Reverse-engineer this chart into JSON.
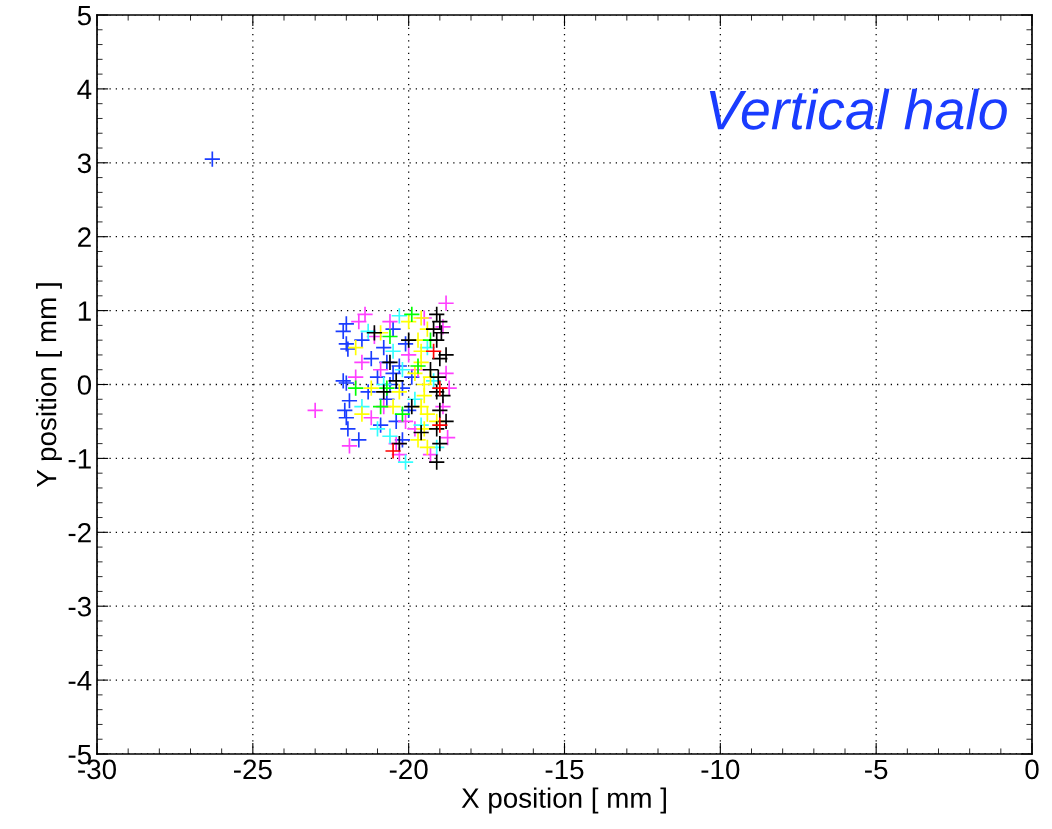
{
  "chart_data": {
    "type": "scatter",
    "xlabel": "X position [ mm ]",
    "ylabel": "Y position [ mm ]",
    "annotations": [
      "Vertical halo"
    ],
    "xlim": [
      -30,
      0
    ],
    "xticks": [
      -30,
      -25,
      -20,
      -15,
      -10,
      -5,
      0
    ],
    "ylim": [
      -5,
      5
    ],
    "yticks": [
      -5,
      -4,
      -3,
      -2,
      -1,
      0,
      1,
      2,
      3,
      4,
      5
    ],
    "grid": true,
    "marker": "cross",
    "series": [
      {
        "color": "#1a3cff",
        "x": [
          -26.3,
          -22.0,
          -22.1,
          -22.0,
          -21.95,
          -22.1,
          -22.0,
          -22.05,
          -22.0,
          -21.95,
          -21.9,
          -21.5,
          -21.2,
          -21.0,
          -20.8,
          -20.7,
          -20.5,
          -20.4,
          -20.6,
          -20.3,
          -20.2,
          -20.1,
          -20.0,
          -20.9,
          -21.3,
          -20.5,
          -19.9,
          -20.7,
          -21.6,
          -20.2
        ],
        "values": [
          3.05,
          0.82,
          0.72,
          0.55,
          0.48,
          0.05,
          0.02,
          -0.35,
          -0.45,
          -0.6,
          -0.22,
          0.6,
          0.35,
          0.1,
          0.5,
          -0.2,
          0.75,
          -0.5,
          0.0,
          0.25,
          -0.05,
          0.55,
          -0.35,
          -0.55,
          -0.1,
          0.15,
          0.1,
          0.3,
          -0.75,
          -0.75
        ]
      },
      {
        "color": "#ff40ff",
        "x": [
          -23.0,
          -21.4,
          -21.6,
          -21.9,
          -21.5,
          -21.1,
          -20.8,
          -20.6,
          -20.4,
          -20.0,
          -19.8,
          -19.5,
          -19.3,
          -18.8,
          -18.9,
          -18.9,
          -18.8,
          -18.75,
          -20.3,
          -21.2,
          -20.9,
          -21.7,
          -19.7,
          -18.7,
          -20.1
        ],
        "values": [
          -0.35,
          0.95,
          0.85,
          -0.83,
          0.3,
          0.65,
          -0.3,
          0.85,
          -0.8,
          0.4,
          -0.6,
          0.9,
          -0.95,
          1.1,
          0.78,
          -0.3,
          0.15,
          -0.72,
          -0.95,
          -0.45,
          0.2,
          0.1,
          0.2,
          -0.05,
          -0.5
        ]
      },
      {
        "color": "#33ffff",
        "x": [
          -21.3,
          -20.3,
          -21.5,
          -20.8,
          -20.1,
          -19.8,
          -19.4,
          -20.5,
          -19.1,
          -21.0,
          -19.6,
          -20.2,
          -19.2,
          -20.6
        ],
        "values": [
          0.72,
          0.93,
          -0.3,
          0.0,
          -1.05,
          -0.2,
          0.5,
          0.45,
          -0.85,
          -0.6,
          -0.55,
          0.2,
          0.05,
          -0.7
        ]
      },
      {
        "color": "#ffff00",
        "x": [
          -21.7,
          -21.5,
          -21.2,
          -20.9,
          -20.5,
          -20.0,
          -19.7,
          -19.6,
          -19.5,
          -19.6,
          -19.5,
          -19.4,
          -19.7,
          -19.3,
          -19.4,
          -19.6,
          -19.5,
          -19.8,
          -19.4,
          -20.3,
          -19.1,
          -19.6
        ],
        "values": [
          0.5,
          -0.4,
          -0.05,
          0.7,
          -0.3,
          0.85,
          0.6,
          0.3,
          0.0,
          -0.3,
          -0.6,
          0.75,
          -0.75,
          0.1,
          -0.4,
          0.45,
          -0.15,
          0.15,
          -0.85,
          -0.1,
          -0.5,
          0.9
        ]
      },
      {
        "color": "#00ff00",
        "x": [
          -19.9,
          -20.6,
          -20.7,
          -20.2,
          -19.7,
          -21.7,
          -20.9,
          -19.3
        ],
        "values": [
          0.95,
          0.65,
          -0.05,
          -0.4,
          0.25,
          -0.05,
          -0.3,
          0.6
        ]
      },
      {
        "color": "#000000",
        "x": [
          -21.1,
          -20.6,
          -20.3,
          -20.0,
          -20.4,
          -19.9,
          -19.1,
          -19.0,
          -19.1,
          -19.0,
          -19.05,
          -19.1,
          -19.0,
          -19.1,
          -19.0,
          -19.1,
          -18.8,
          -18.8,
          -19.3,
          -19.6,
          -20.8,
          -19.2,
          -18.9,
          -18.95
        ],
        "values": [
          0.7,
          0.3,
          -0.8,
          0.6,
          0.05,
          -0.3,
          0.95,
          0.85,
          0.6,
          0.35,
          0.1,
          -0.1,
          -0.35,
          -0.6,
          -0.8,
          -1.05,
          -0.5,
          0.4,
          0.2,
          -0.65,
          -0.1,
          0.75,
          -0.15,
          0.7
        ]
      },
      {
        "color": "#ff0000",
        "x": [
          -19.0,
          -19.2,
          -20.5,
          -19.0
        ],
        "values": [
          -0.05,
          0.45,
          -0.9,
          -0.55
        ]
      }
    ]
  }
}
